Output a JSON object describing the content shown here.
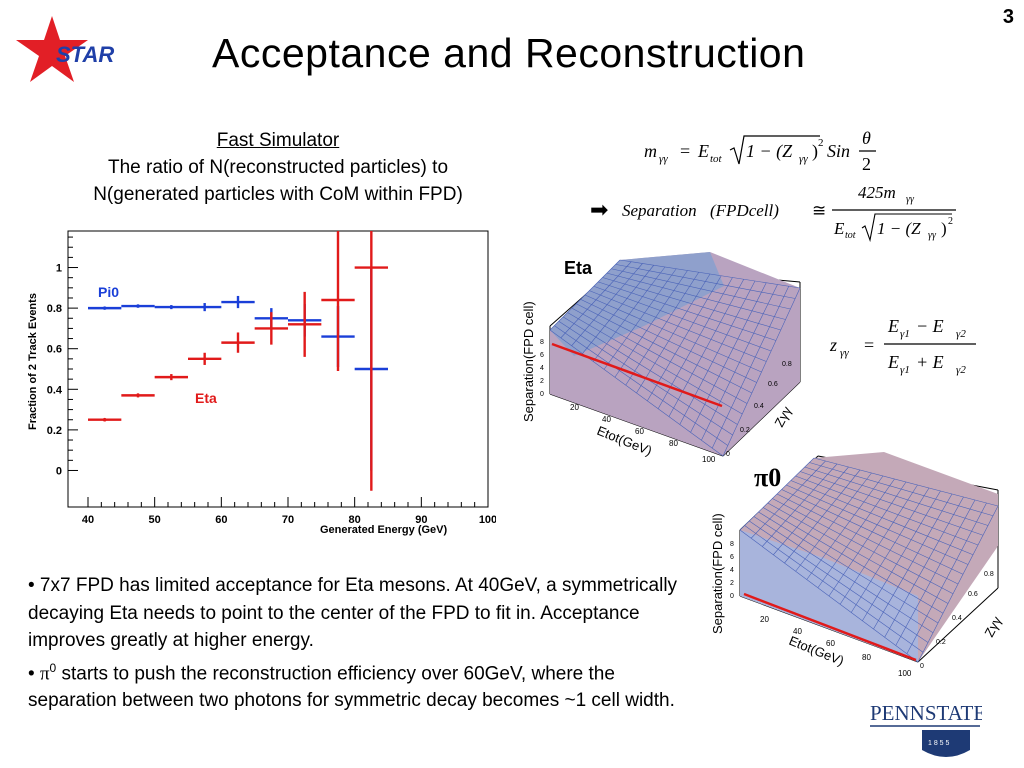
{
  "slide": {
    "page_number": "3",
    "title": "Acceptance and Reconstruction",
    "logo_text": "STAR",
    "simulator_heading": "Fast Simulator",
    "simulator_line1": "The ratio of N(reconstructed particles) to",
    "simulator_line2": "N(generated particles with CoM within FPD)",
    "bullet1": "• 7x7 FPD has limited acceptance for Eta mesons. At 40GeV, a symmetrically decaying Eta needs to point to the center of the FPD to fit in. Acceptance improves greatly at higher energy.",
    "bullet2_prefix": "• ",
    "bullet2_symbol": "π",
    "bullet2_sup": "0",
    "bullet2_text": " starts to push the reconstruction efficiency over 60GeV, where the separation between two photons for symmetric decay becomes ~1 cell width.",
    "pennstate_text": "PENNSTATE",
    "pennstate_year": "1 8 5 5",
    "colors": {
      "star_red": "#e21f26",
      "star_blue": "#1f3fa8",
      "pi0_blue": "#1a3fd8",
      "eta_red": "#e11a1a",
      "surface_fill": "#b9a3c0",
      "mesh_blue": "#4a63b8",
      "psu_navy": "#1e3a75"
    }
  },
  "formulas": {
    "f1_lhs": "m",
    "f1_lhs_sub": "γγ",
    "f1_eq": "=",
    "f1_E": "E",
    "f1_E_sub": "tot",
    "f1_sqrt": "1 − (Z",
    "f1_sqrt_sub": "γγ",
    "f1_sqrt_end": ")",
    "f1_sqrt_sup": "2",
    "f1_sin": "Sin",
    "f1_theta": "θ",
    "f1_two": "2",
    "f2_arrow": "➡",
    "f2_lhs": "Separation",
    "f2_arg": "(FPDcell)",
    "f2_approx": "≅",
    "f2_num": "425m",
    "f2_num_sub": "γγ",
    "f2_den_E": "E",
    "f2_den_sub": "tot",
    "f2_den_sqrt": "1 − (Z",
    "f2_den_sqrt_sub": "γγ",
    "f2_den_sqrt_end": ")",
    "f2_den_sup": "2",
    "f3_lhs": "z",
    "f3_lhs_sub": "γγ",
    "f3_eq": "=",
    "f3_num": "E",
    "f3_num_sub1": "γ1",
    "f3_minus": " − E",
    "f3_num_sub2": "γ2",
    "f3_den": "E",
    "f3_den_sub1": "γ1",
    "f3_plus": " + E",
    "f3_den_sub2": "γ2"
  },
  "chart_data": [
    {
      "type": "scatter",
      "title": "",
      "xlabel": "Generated  Energy  (GeV)",
      "ylabel": "Fraction  of  2  Track  Events",
      "xlim": [
        37,
        100
      ],
      "ylim": [
        -0.18,
        1.18
      ],
      "xticks": [
        40,
        50,
        60,
        70,
        80,
        90,
        100
      ],
      "yticks": [
        0,
        0.2,
        0.4,
        0.6,
        0.8,
        1
      ],
      "ytick_labels": [
        "0",
        "0.2",
        "0.4",
        "0.6",
        "0.8",
        "1"
      ],
      "grid": false,
      "series": [
        {
          "name": "Pi0",
          "color": "#1a3fd8",
          "points": [
            {
              "x": 42.5,
              "y": 0.8,
              "xerr": 2.5,
              "yerr": 0.0
            },
            {
              "x": 47.5,
              "y": 0.81,
              "xerr": 2.5,
              "yerr": 0.0
            },
            {
              "x": 52.5,
              "y": 0.805,
              "xerr": 2.5,
              "yerr": 0.01
            },
            {
              "x": 57.5,
              "y": 0.805,
              "xerr": 2.5,
              "yerr": 0.02
            },
            {
              "x": 62.5,
              "y": 0.83,
              "xerr": 2.5,
              "yerr": 0.03
            },
            {
              "x": 67.5,
              "y": 0.75,
              "xerr": 2.5,
              "yerr": 0.05
            },
            {
              "x": 72.5,
              "y": 0.74,
              "xerr": 2.5,
              "yerr": 0.08
            },
            {
              "x": 77.5,
              "y": 0.66,
              "xerr": 2.5,
              "yerr": 0.15
            },
            {
              "x": 82.5,
              "y": 0.5,
              "xerr": 2.5,
              "yerr": 0.5
            }
          ]
        },
        {
          "name": "Eta",
          "color": "#e11a1a",
          "points": [
            {
              "x": 42.5,
              "y": 0.25,
              "xerr": 2.5,
              "yerr": 0.0
            },
            {
              "x": 47.5,
              "y": 0.37,
              "xerr": 2.5,
              "yerr": 0.01
            },
            {
              "x": 52.5,
              "y": 0.46,
              "xerr": 2.5,
              "yerr": 0.015
            },
            {
              "x": 57.5,
              "y": 0.55,
              "xerr": 2.5,
              "yerr": 0.03
            },
            {
              "x": 62.5,
              "y": 0.63,
              "xerr": 2.5,
              "yerr": 0.05
            },
            {
              "x": 67.5,
              "y": 0.7,
              "xerr": 2.5,
              "yerr": 0.08
            },
            {
              "x": 72.5,
              "y": 0.72,
              "xerr": 2.5,
              "yerr": 0.16
            },
            {
              "x": 77.5,
              "y": 0.84,
              "xerr": 2.5,
              "yerr": 0.35
            },
            {
              "x": 82.5,
              "y": 1.0,
              "xerr": 2.5,
              "yerr": 1.1
            }
          ]
        }
      ]
    },
    {
      "type": "surface",
      "title": "Eta",
      "xlabel": "Etot(GeV)",
      "ylabel": "Zγγ",
      "zlabel": "Separation(FPD cell)",
      "x_ticks": [
        "20",
        "40",
        "60",
        "80",
        "100"
      ],
      "y_ticks": [
        "0",
        "0.2",
        "0.4",
        "0.6",
        "0.8"
      ],
      "z_ticks": [
        "0",
        "2",
        "4",
        "6",
        "8"
      ]
    },
    {
      "type": "surface",
      "title": "π0",
      "xlabel": "Etot(GeV)",
      "ylabel": "Zγγ",
      "zlabel": "Separation(FPD cell)",
      "x_ticks": [
        "20",
        "40",
        "60",
        "80",
        "100"
      ],
      "y_ticks": [
        "0",
        "0.2",
        "0.4",
        "0.6",
        "0.8"
      ],
      "z_ticks": [
        "0",
        "2",
        "4",
        "6",
        "8"
      ]
    }
  ]
}
